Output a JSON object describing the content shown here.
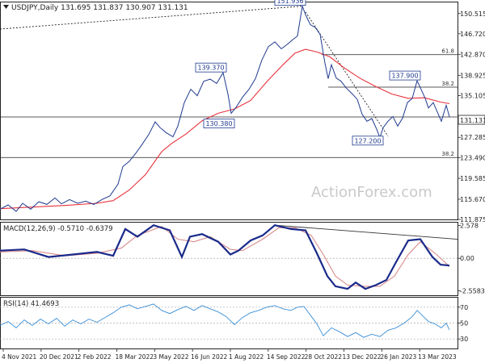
{
  "chart_data": [
    {
      "type": "candlestick",
      "title": "USDJPY,Daily",
      "ohlc": {
        "open": "131.695",
        "high": "131.837",
        "low": "130.907",
        "close": "131.131"
      },
      "current_price": 131.131,
      "current_price_label": "131.131",
      "ylim": [
        111.88,
        152.6
      ],
      "y_ticks": [
        {
          "value": 150.515,
          "label": "150.515"
        },
        {
          "value": 146.72,
          "label": "146.720"
        },
        {
          "value": 142.87,
          "label": "142.870"
        },
        {
          "value": 138.925,
          "label": "138.925"
        },
        {
          "value": 135.105,
          "label": "135.105"
        },
        {
          "value": 127.285,
          "label": "127.285"
        },
        {
          "value": 123.49,
          "label": "123.490"
        },
        {
          "value": 119.585,
          "label": "119.585"
        },
        {
          "value": 115.67,
          "label": "115.670"
        },
        {
          "value": 111.875,
          "label": "111.875"
        }
      ],
      "x_ticks": [
        "4 Nov 2021",
        "20 Dec 2021",
        "2 Feb 2022",
        "18 Mar 2022",
        "3 May 2022",
        "16 Jun 2022",
        "1 Aug 2022",
        "14 Sep 2022",
        "28 Oct 2022",
        "13 Dec 2022",
        "26 Jan 2023",
        "13 Mar 2023"
      ],
      "price_path": [
        [
          0,
          113.8
        ],
        [
          10,
          114.6
        ],
        [
          20,
          113.4
        ],
        [
          28,
          114.9
        ],
        [
          38,
          113.8
        ],
        [
          48,
          115.2
        ],
        [
          58,
          114.7
        ],
        [
          68,
          115.9
        ],
        [
          76,
          114.8
        ],
        [
          86,
          115.6
        ],
        [
          96,
          114.9
        ],
        [
          106,
          115.3
        ],
        [
          116,
          114.7
        ],
        [
          126,
          115.6
        ],
        [
          136,
          116.3
        ],
        [
          146,
          118.5
        ],
        [
          152,
          121.8
        ],
        [
          160,
          122.8
        ],
        [
          168,
          124.3
        ],
        [
          176,
          126.0
        ],
        [
          184,
          127.8
        ],
        [
          192,
          130.2
        ],
        [
          198,
          129.1
        ],
        [
          206,
          128.1
        ],
        [
          214,
          127.4
        ],
        [
          220,
          129.4
        ],
        [
          228,
          133.8
        ],
        [
          236,
          136.3
        ],
        [
          244,
          135.1
        ],
        [
          252,
          137.8
        ],
        [
          260,
          138.2
        ],
        [
          268,
          137.4
        ],
        [
          276,
          139.4
        ],
        [
          282,
          135.4
        ],
        [
          286,
          131.8
        ],
        [
          292,
          132.9
        ],
        [
          300,
          134.8
        ],
        [
          308,
          136.3
        ],
        [
          316,
          138.3
        ],
        [
          324,
          141.8
        ],
        [
          332,
          144.3
        ],
        [
          340,
          145.2
        ],
        [
          348,
          143.9
        ],
        [
          356,
          144.8
        ],
        [
          362,
          145.6
        ],
        [
          368,
          146.3
        ],
        [
          374,
          151.9
        ],
        [
          378,
          150.3
        ],
        [
          384,
          148.4
        ],
        [
          390,
          147.9
        ],
        [
          396,
          146.6
        ],
        [
          402,
          141.2
        ],
        [
          406,
          138.3
        ],
        [
          410,
          140.9
        ],
        [
          416,
          138.4
        ],
        [
          422,
          137.8
        ],
        [
          428,
          136.6
        ],
        [
          436,
          135.4
        ],
        [
          442,
          134.4
        ],
        [
          448,
          131.6
        ],
        [
          454,
          130.3
        ],
        [
          460,
          130.8
        ],
        [
          466,
          128.8
        ],
        [
          470,
          127.2
        ],
        [
          474,
          129.1
        ],
        [
          480,
          130.3
        ],
        [
          486,
          131.2
        ],
        [
          492,
          129.4
        ],
        [
          498,
          130.9
        ],
        [
          504,
          133.8
        ],
        [
          510,
          134.6
        ],
        [
          516,
          137.9
        ],
        [
          520,
          136.6
        ],
        [
          526,
          134.6
        ],
        [
          530,
          132.8
        ],
        [
          536,
          133.8
        ],
        [
          540,
          132.4
        ],
        [
          546,
          130.3
        ],
        [
          552,
          133.3
        ],
        [
          556,
          131.13
        ]
      ],
      "moving_average": [
        [
          0,
          113.9
        ],
        [
          40,
          114.2
        ],
        [
          80,
          114.5
        ],
        [
          120,
          114.9
        ],
        [
          140,
          115.4
        ],
        [
          160,
          117.4
        ],
        [
          180,
          120.3
        ],
        [
          200,
          124.6
        ],
        [
          212,
          126.1
        ],
        [
          230,
          127.9
        ],
        [
          250,
          130.4
        ],
        [
          270,
          131.8
        ],
        [
          290,
          132.6
        ],
        [
          310,
          134.2
        ],
        [
          330,
          137.7
        ],
        [
          350,
          140.9
        ],
        [
          365,
          143.1
        ],
        [
          378,
          143.8
        ],
        [
          392,
          143.3
        ],
        [
          408,
          142.4
        ],
        [
          425,
          140.4
        ],
        [
          445,
          138.4
        ],
        [
          465,
          136.8
        ],
        [
          485,
          135.4
        ],
        [
          505,
          134.6
        ],
        [
          525,
          134.7
        ],
        [
          545,
          133.9
        ],
        [
          556,
          133.6
        ]
      ],
      "horizontal_levels": [
        {
          "value": 142.8,
          "label": "61.8"
        },
        {
          "value": 136.7,
          "label": "38.2"
        },
        {
          "value": 131.1,
          "label": ""
        },
        {
          "value": 123.5,
          "label": "38.2"
        }
      ],
      "annotations": [
        {
          "text": "151.936",
          "at": [
            374,
            151.9
          ]
        },
        {
          "text": "139.370",
          "at": [
            276,
            139.4
          ]
        },
        {
          "text": "130.380",
          "at": [
            286,
            130.4
          ]
        },
        {
          "text": "137.900",
          "at": [
            516,
            137.9
          ]
        },
        {
          "text": "127.200",
          "at": [
            470,
            127.2
          ]
        }
      ],
      "trendlines": [
        {
          "style": "dotted",
          "from": [
            0,
            147.6
          ],
          "to": [
            374,
            151.9
          ]
        },
        {
          "style": "dotted",
          "from": [
            378,
            150.8
          ],
          "to": [
            480,
            127.5
          ]
        }
      ],
      "watermark": "ActionForex.com",
      "colors": {
        "price": "#1f3a8f",
        "moving_average": "#e8323c",
        "level": "#222222",
        "label_border": "#1f3a8f"
      }
    },
    {
      "type": "line",
      "title": "MACD(12,26,9) -0.5710 -0.6379",
      "ylim": [
        -2.9,
        2.8
      ],
      "y_ticks": [
        {
          "value": 2.578,
          "label": "2.578"
        },
        {
          "value": 0.0,
          "label": "0.00"
        },
        {
          "value": -2.5583,
          "label": "-2.5583"
        }
      ],
      "series": [
        {
          "role": "macd",
          "color": "#1a2a8a",
          "values": [
            [
              0,
              0.6
            ],
            [
              30,
              0.7
            ],
            [
              60,
              0.1
            ],
            [
              90,
              0.3
            ],
            [
              120,
              0.5
            ],
            [
              140,
              0.2
            ],
            [
              155,
              2.3
            ],
            [
              170,
              1.7
            ],
            [
              190,
              2.6
            ],
            [
              210,
              2.2
            ],
            [
              225,
              0.1
            ],
            [
              235,
              1.7
            ],
            [
              250,
              1.9
            ],
            [
              270,
              1.3
            ],
            [
              285,
              0.3
            ],
            [
              295,
              0.6
            ],
            [
              310,
              1.4
            ],
            [
              325,
              1.8
            ],
            [
              340,
              2.6
            ],
            [
              360,
              2.3
            ],
            [
              378,
              2.2
            ],
            [
              392,
              0.4
            ],
            [
              405,
              -1.4
            ],
            [
              415,
              -2.2
            ],
            [
              430,
              -2.4
            ],
            [
              440,
              -1.9
            ],
            [
              452,
              -2.4
            ],
            [
              465,
              -2.1
            ],
            [
              478,
              -1.7
            ],
            [
              490,
              -0.3
            ],
            [
              505,
              1.4
            ],
            [
              520,
              1.5
            ],
            [
              535,
              0.1
            ],
            [
              545,
              -0.5
            ],
            [
              556,
              -0.57
            ]
          ]
        },
        {
          "role": "signal",
          "color": "#d98a8a",
          "values": [
            [
              0,
              0.5
            ],
            [
              40,
              0.6
            ],
            [
              80,
              0.2
            ],
            [
              120,
              0.4
            ],
            [
              150,
              0.8
            ],
            [
              170,
              1.8
            ],
            [
              200,
              2.5
            ],
            [
              220,
              1.5
            ],
            [
              240,
              1.3
            ],
            [
              260,
              1.7
            ],
            [
              285,
              0.7
            ],
            [
              300,
              0.6
            ],
            [
              325,
              1.5
            ],
            [
              345,
              2.4
            ],
            [
              365,
              2.4
            ],
            [
              385,
              1.8
            ],
            [
              400,
              0.3
            ],
            [
              415,
              -1.4
            ],
            [
              430,
              -2.1
            ],
            [
              450,
              -2.2
            ],
            [
              470,
              -2.2
            ],
            [
              488,
              -1.4
            ],
            [
              505,
              0.3
            ],
            [
              520,
              1.3
            ],
            [
              540,
              0.3
            ],
            [
              556,
              -0.64
            ]
          ]
        }
      ],
      "trendline": {
        "from": [
          340,
          2.6
        ],
        "to": [
          566,
          1.5
        ]
      }
    },
    {
      "type": "line",
      "title": "RSI(14) 41.4693",
      "ylim": [
        18,
        82
      ],
      "y_ticks": [
        {
          "value": 70,
          "label": "70"
        },
        {
          "value": 50,
          "label": "50"
        },
        {
          "value": 30,
          "label": "30"
        }
      ],
      "series": [
        {
          "role": "rsi",
          "color": "#3a8fd6",
          "values": [
            [
              0,
              47
            ],
            [
              10,
              52
            ],
            [
              20,
              44
            ],
            [
              30,
              54
            ],
            [
              40,
              47
            ],
            [
              50,
              55
            ],
            [
              60,
              49
            ],
            [
              70,
              56
            ],
            [
              80,
              46
            ],
            [
              90,
              54
            ],
            [
              100,
              49
            ],
            [
              110,
              55
            ],
            [
              120,
              51
            ],
            [
              130,
              57
            ],
            [
              140,
              63
            ],
            [
              150,
              70
            ],
            [
              160,
              73
            ],
            [
              170,
              68
            ],
            [
              180,
              71
            ],
            [
              190,
              74
            ],
            [
              200,
              66
            ],
            [
              210,
              62
            ],
            [
              220,
              67
            ],
            [
              230,
              71
            ],
            [
              240,
              66
            ],
            [
              250,
              72
            ],
            [
              260,
              68
            ],
            [
              270,
              64
            ],
            [
              280,
              58
            ],
            [
              290,
              48
            ],
            [
              300,
              57
            ],
            [
              310,
              63
            ],
            [
              320,
              66
            ],
            [
              330,
              70
            ],
            [
              340,
              72
            ],
            [
              350,
              68
            ],
            [
              360,
              66
            ],
            [
              368,
              70
            ],
            [
              376,
              71
            ],
            [
              384,
              60
            ],
            [
              392,
              49
            ],
            [
              400,
              34
            ],
            [
              410,
              44
            ],
            [
              420,
              39
            ],
            [
              430,
              33
            ],
            [
              440,
              38
            ],
            [
              450,
              32
            ],
            [
              460,
              36
            ],
            [
              470,
              33
            ],
            [
              480,
              41
            ],
            [
              490,
              44
            ],
            [
              500,
              50
            ],
            [
              510,
              58
            ],
            [
              516,
              66
            ],
            [
              522,
              60
            ],
            [
              530,
              52
            ],
            [
              538,
              49
            ],
            [
              546,
              44
            ],
            [
              552,
              50
            ],
            [
              556,
              41.5
            ]
          ]
        }
      ]
    }
  ],
  "price_scale": {
    "label": "131.131"
  }
}
